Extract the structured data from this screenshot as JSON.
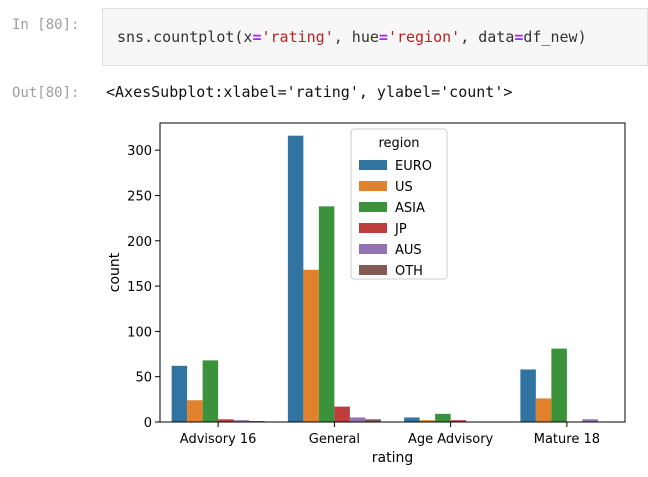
{
  "cells": {
    "input_prompt": "In [80]:",
    "output_prompt": "Out[80]:",
    "code_tokens": [
      {
        "t": "sns.countplot(x",
        "c": "name"
      },
      {
        "t": "=",
        "c": "op"
      },
      {
        "t": "'rating'",
        "c": "str"
      },
      {
        "t": ", hue",
        "c": "name"
      },
      {
        "t": "=",
        "c": "op"
      },
      {
        "t": "'region'",
        "c": "str"
      },
      {
        "t": ", data",
        "c": "name"
      },
      {
        "t": "=",
        "c": "op"
      },
      {
        "t": "df_new)",
        "c": "name"
      }
    ],
    "output_text": "<AxesSubplot:xlabel='rating', ylabel='count'>"
  },
  "chart_data": {
    "type": "bar",
    "categories": [
      "Advisory 16",
      "General",
      "Age Advisory",
      "Mature 18"
    ],
    "series": [
      {
        "name": "EURO",
        "color": "#3274a1",
        "values": [
          62,
          316,
          5,
          58
        ]
      },
      {
        "name": "US",
        "color": "#e1812c",
        "values": [
          24,
          168,
          2,
          26
        ]
      },
      {
        "name": "ASIA",
        "color": "#3a923a",
        "values": [
          68,
          238,
          9,
          81
        ]
      },
      {
        "name": "JP",
        "color": "#c03d3e",
        "values": [
          3,
          17,
          2,
          0
        ]
      },
      {
        "name": "AUS",
        "color": "#9372b2",
        "values": [
          2,
          5,
          0,
          3
        ]
      },
      {
        "name": "OTH",
        "color": "#845b53",
        "values": [
          1,
          3,
          0,
          0
        ]
      }
    ],
    "xlabel": "rating",
    "ylabel": "count",
    "ylim": [
      0,
      330
    ],
    "yticks": [
      0,
      50,
      100,
      150,
      200,
      250,
      300
    ],
    "legend": {
      "title": "region",
      "placement": "upper-center"
    },
    "grid": false
  }
}
